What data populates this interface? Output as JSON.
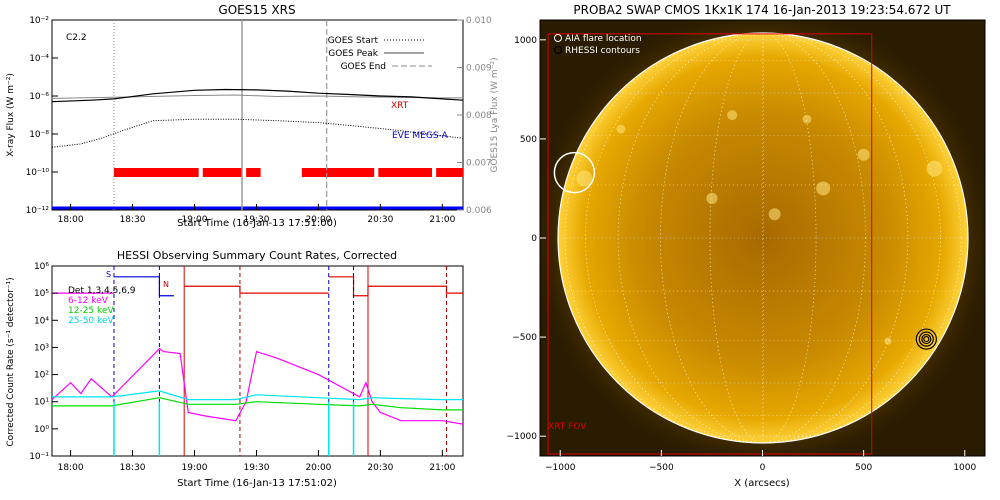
{
  "panels": {
    "goes": {
      "title": "GOES15 XRS",
      "flare_class": "C2.2",
      "ylabel": "X-ray Flux (W m⁻²)",
      "y2label": "GOES15 Lya Flux (W m⁻²)",
      "xlabel": "Start Time (16-Jan-13 17:51:00)",
      "legend": [
        "GOES Start",
        "GOES Peak",
        "GOES End"
      ],
      "labels": {
        "xrt": "XRT",
        "eve": "EVE MEGS-A"
      },
      "yticks": [
        "10⁻²",
        "10⁻⁴",
        "10⁻⁶",
        "10⁻⁸",
        "10⁻¹⁰",
        "10⁻¹²"
      ],
      "y2ticks": [
        "0.010",
        "0.009",
        "0.008",
        "0.007",
        "0.006"
      ],
      "xticks": [
        "18:00",
        "18:30",
        "19:00",
        "19:30",
        "20:00",
        "20:30",
        "21:00"
      ]
    },
    "hessi": {
      "title": "HESSI Observing Summary Count Rates, Corrected",
      "ylabel": "Corrected Count Rate (s⁻¹ detector⁻¹)",
      "xlabel": "Start Time (16-Jan-13 17:51:02)",
      "legend": [
        {
          "label": "Det 1,3,4,5,6,9",
          "color": "#000000"
        },
        {
          "label": "6-12 keV",
          "color": "#ff00ff"
        },
        {
          "label": "12-25 keV",
          "color": "#00dd00"
        },
        {
          "label": "25-50 keV",
          "color": "#00e5ee"
        }
      ],
      "markers": {
        "s": "S",
        "n": "N"
      },
      "yticks": [
        "10⁵",
        "10⁴",
        "10³",
        "10²",
        "10¹",
        "10⁰",
        "10⁻¹"
      ],
      "ytop": "10⁶",
      "xticks": [
        "18:00",
        "18:30",
        "19:00",
        "19:30",
        "20:00",
        "20:30",
        "21:00"
      ]
    },
    "swap": {
      "title": "PROBA2 SWAP CMOS 1Kx1K 174 16-Jan-2013 19:23:54.672 UT",
      "xlabel": "X (arcsecs)",
      "legend": [
        "AIA flare location",
        "RHESSI contours"
      ],
      "fov_label": "XRT FOV",
      "xticks": [
        "−1000",
        "−500",
        "0",
        "500",
        "1000"
      ],
      "yticks": [
        "1000",
        "500",
        "0",
        "−500",
        "−1000"
      ]
    }
  },
  "chart_data": [
    {
      "type": "line",
      "title": "GOES15 XRS",
      "xlabel": "Start Time (16-Jan-13 17:51:00)",
      "ylabel": "X-ray Flux (W m^-2)",
      "y2label": "GOES15 Lya Flux (W m^-2)",
      "xlim": [
        "17:51",
        "21:10"
      ],
      "ylim": [
        1e-12,
        0.01
      ],
      "y2lim": [
        0.006,
        0.01
      ],
      "yscale": "log",
      "flare_class": "C2.2",
      "events": {
        "GOES Start": "18:21",
        "GOES Peak": "19:23",
        "GOES End": "20:04"
      },
      "series": [
        {
          "name": "XRT",
          "color": "#000000",
          "x": [
            "17:51",
            "18:10",
            "18:21",
            "18:40",
            "19:00",
            "19:15",
            "19:30",
            "19:45",
            "20:00",
            "20:15",
            "20:30",
            "20:45",
            "21:00",
            "21:10"
          ],
          "y": [
            5e-07,
            6e-07,
            7e-07,
            1.3e-06,
            2e-06,
            2.2e-06,
            2.1e-06,
            1.8e-06,
            1.4e-06,
            1.2e-06,
            1e-06,
            9e-07,
            7e-07,
            6e-07
          ]
        },
        {
          "name": "EVE MEGS-A",
          "color": "#0000ff",
          "x": [
            "17:51",
            "18:05",
            "18:15",
            "18:25",
            "18:40",
            "19:00",
            "19:20",
            "19:40",
            "20:00",
            "20:20",
            "20:40",
            "21:00",
            "21:10"
          ],
          "y": [
            2e-09,
            3e-09,
            6e-09,
            1.5e-08,
            5e-08,
            6e-08,
            6e-08,
            5e-08,
            4e-08,
            2.5e-08,
            1.5e-08,
            8e-09,
            6e-09
          ]
        }
      ],
      "lya": {
        "x": [
          "17:51",
          "18:30",
          "19:00",
          "19:20",
          "19:40",
          "20:00",
          "20:20",
          "20:40",
          "21:00",
          "21:10"
        ],
        "y": [
          0.00835,
          0.00838,
          0.00841,
          0.00842,
          0.00839,
          0.0084,
          0.00838,
          0.00837,
          0.00836,
          0.00836
        ]
      },
      "xrt_coverage": [
        [
          "18:21",
          "19:02"
        ],
        [
          "19:04",
          "19:23"
        ],
        [
          "19:25",
          "19:32"
        ],
        [
          "19:52",
          "20:27"
        ],
        [
          "20:29",
          "20:55"
        ],
        [
          "20:57",
          "21:10"
        ]
      ]
    },
    {
      "type": "line",
      "title": "HESSI Observing Summary Count Rates, Corrected",
      "xlabel": "Start Time (16-Jan-13 17:51:02)",
      "ylabel": "Corrected Count Rate (s^-1 detector^-1)",
      "yscale": "log",
      "ylim": [
        0.1,
        1000000.0
      ],
      "xlim": [
        "17:51",
        "21:10"
      ],
      "series": [
        {
          "name": "6-12 keV",
          "color": "#ff00ff",
          "x": [
            "17:51",
            "18:00",
            "18:05",
            "18:10",
            "18:20",
            "18:43",
            "18:45",
            "18:53",
            "18:57",
            "19:05",
            "19:20",
            "19:25",
            "19:30",
            "19:40",
            "20:00",
            "20:20",
            "20:23",
            "20:26",
            "20:30",
            "20:40",
            "21:00",
            "21:10"
          ],
          "y": [
            12,
            50,
            20,
            70,
            15,
            900,
            700,
            600,
            4,
            3,
            2,
            10,
            700,
            400,
            100,
            15,
            50,
            10,
            4,
            2,
            2,
            1.5
          ]
        },
        {
          "name": "12-25 keV",
          "color": "#00dd00",
          "x": [
            "17:51",
            "18:10",
            "18:20",
            "18:43",
            "18:57",
            "19:20",
            "19:30",
            "20:00",
            "20:20",
            "20:26",
            "20:40",
            "21:00",
            "21:10"
          ],
          "y": [
            7,
            7,
            7,
            14,
            8,
            8,
            10,
            8,
            7,
            8,
            6,
            5,
            5
          ]
        },
        {
          "name": "25-50 keV",
          "color": "#00e5ee",
          "x": [
            "17:51",
            "18:10",
            "18:20",
            "18:43",
            "18:57",
            "19:20",
            "19:30",
            "20:00",
            "20:20",
            "20:26",
            "20:40",
            "21:00",
            "21:10"
          ],
          "y": [
            15,
            15,
            15,
            25,
            12,
            12,
            18,
            14,
            12,
            14,
            13,
            12,
            12
          ]
        }
      ],
      "attenuator_markers": {
        "S": "18:21",
        "N": "18:55"
      }
    },
    {
      "type": "image",
      "title": "PROBA2 SWAP CMOS 1Kx1K 174 16-Jan-2013 19:23:54.672 UT",
      "xlabel": "X (arcsecs)",
      "xlim": [
        -1100,
        1100
      ],
      "ylim": [
        -1100,
        1100
      ],
      "aia_flare_location": [
        -930,
        330
      ],
      "rhessi_contours": [
        810,
        -510
      ],
      "xrt_fov": {
        "x": [
          -1060,
          540
        ],
        "y": [
          -1090,
          1030
        ]
      }
    }
  ]
}
